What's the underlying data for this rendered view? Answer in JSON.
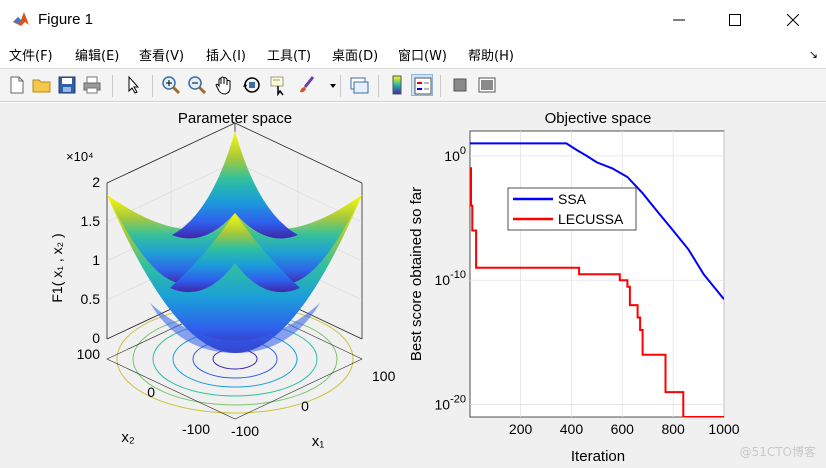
{
  "window": {
    "title": "Figure 1"
  },
  "menu": {
    "items": [
      "文件(F)",
      "编辑(E)",
      "查看(V)",
      "插入(I)",
      "工具(T)",
      "桌面(D)",
      "窗口(W)",
      "帮助(H)"
    ],
    "overflow_icon": "arrow-icon"
  },
  "toolbar": {
    "icons": [
      "new-figure-icon",
      "open-icon",
      "save-icon",
      "print-icon",
      "pointer-icon",
      "zoom-in-icon",
      "zoom-out-icon",
      "pan-hand-icon",
      "rotate-3d-icon",
      "data-cursor-icon",
      "brush-icon",
      "link-plot-icon",
      "colorbar-icon",
      "legend-icon",
      "hide-plot-tools-icon",
      "show-plot-tools-icon"
    ]
  },
  "watermark": "@51CTO博客",
  "chart_data": [
    {
      "type": "surface",
      "title": "Parameter space",
      "xlabel": "x₁",
      "ylabel": "x₂",
      "zlabel": "F1( x₁ , x₂ )",
      "exponent_label": "×10⁴",
      "x_ticks": [
        "-100",
        "0",
        "100"
      ],
      "y_ticks": [
        "-100",
        "0",
        "100"
      ],
      "z_ticks": [
        "0",
        "0.5",
        "1",
        "1.5",
        "2"
      ],
      "x_range": [
        -100,
        100
      ],
      "y_range": [
        -100,
        100
      ],
      "z_range": [
        0,
        20000
      ],
      "function": "x1^2 + x2^2",
      "colormap": "parula",
      "contours_below": true
    },
    {
      "type": "line",
      "title": "Objective space",
      "xlabel": "Iteration",
      "ylabel": "Best score obtained so far",
      "yscale": "log",
      "xlim": [
        1,
        1000
      ],
      "ylim": [
        1e-21,
        100.0
      ],
      "x_ticks": [
        "200",
        "400",
        "600",
        "800",
        "1000"
      ],
      "y_ticks": [
        "10^0",
        "10^-10",
        "10^-20"
      ],
      "grid": true,
      "legend": "upper-left",
      "series": [
        {
          "name": "SSA",
          "color": "#0000ff",
          "x": [
            1,
            150,
            300,
            380,
            420,
            460,
            500,
            560,
            620,
            680,
            740,
            800,
            860,
            920,
            960,
            1000
          ],
          "y": [
            10.0,
            10.0,
            10.0,
            10.0,
            3.0,
            1.0,
            0.3,
            0.1,
            0.02,
            0.001,
            3e-05,
            1e-06,
            3e-08,
            3e-10,
            3e-11,
            3e-12
          ]
        },
        {
          "name": "LECUSSA",
          "color": "#ff0000",
          "x": [
            1,
            5,
            10,
            25,
            60,
            420,
            430,
            520,
            590,
            620,
            630,
            660,
            670,
            680,
            760,
            770,
            830,
            840,
            1000
          ],
          "y": [
            0.1,
            0.0001,
            1e-06,
            1e-09,
            1e-09,
            1e-09,
            3e-10,
            3e-10,
            1e-10,
            3e-11,
            1e-12,
            1e-13,
            1e-14,
            1e-16,
            1e-16,
            1e-19,
            1e-19,
            1e-21,
            1e-21
          ]
        }
      ]
    }
  ]
}
